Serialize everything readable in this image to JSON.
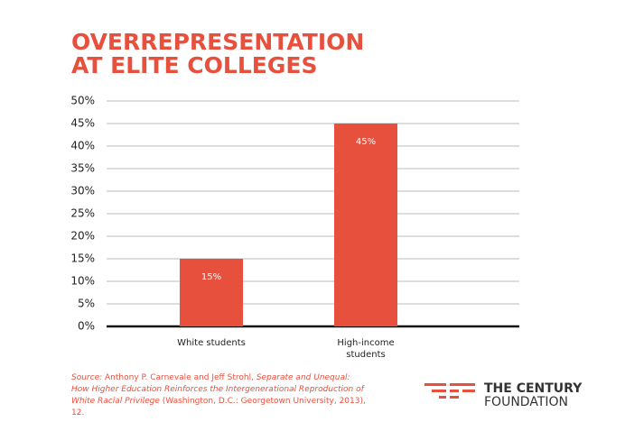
{
  "chart_data": {
    "type": "bar",
    "title": [
      "OVERREPRESENTATION",
      "AT ELITE COLLEGES"
    ],
    "categories": [
      "White students",
      "High-income students"
    ],
    "values": [
      15,
      45
    ],
    "value_labels": [
      "15%",
      "45%"
    ],
    "color": "#e8503e",
    "ylim": [
      0,
      50
    ],
    "yticks": [
      {
        "value": 0,
        "label": "0%"
      },
      {
        "value": 5,
        "label": "5%"
      },
      {
        "value": 10,
        "label": "10%"
      },
      {
        "value": 15,
        "label": "15%"
      },
      {
        "value": 20,
        "label": "20%"
      },
      {
        "value": 25,
        "label": "25%"
      },
      {
        "value": 30,
        "label": "30%"
      },
      {
        "value": 35,
        "label": "35%"
      },
      {
        "value": 40,
        "label": "40%"
      },
      {
        "value": 45,
        "label": "45%"
      },
      {
        "value": 50,
        "label": "50%"
      }
    ],
    "grid": true,
    "source": [
      "Source:",
      " Anthony P. Carnevale and Jeff Strohl, ",
      "Separate and Unequal: How Higher Education Reinforces the Intergenerational Reproduction of White Racial Privilege",
      " (Washington, D.C.: Georgetown University, 2013), 12."
    ]
  },
  "logo": [
    "THE CENTURY",
    "FOUNDATION"
  ]
}
